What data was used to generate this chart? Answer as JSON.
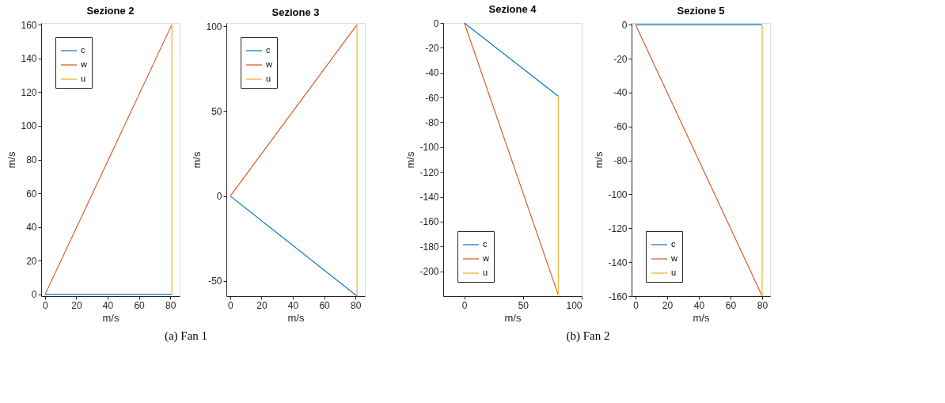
{
  "chart_data": [
    {
      "type": "line",
      "title": "Sezione 2",
      "xlabel": "m/s",
      "ylabel": "m/s",
      "xlim": [
        -2.5,
        86
      ],
      "xticks": [
        0,
        20,
        40,
        60,
        80
      ],
      "ylim": [
        -1,
        161
      ],
      "yticks": [
        0,
        20,
        40,
        60,
        80,
        100,
        120,
        140,
        160
      ],
      "legend": "top left",
      "grid": false,
      "marker": "none",
      "annotations": [
        "(a) Fan 1"
      ],
      "series": [
        {
          "name": "c",
          "color": "#0072bd",
          "x": [
            0,
            81
          ],
          "values": [
            0,
            0
          ]
        },
        {
          "name": "w",
          "color": "#d95319",
          "x": [
            0,
            81
          ],
          "values": [
            0,
            160
          ]
        },
        {
          "name": "u",
          "color": "#edb120",
          "x": [
            81,
            81
          ],
          "values": [
            160,
            0
          ]
        }
      ]
    },
    {
      "type": "line",
      "title": "Sezione 3",
      "xlabel": "m/s",
      "ylabel": "m/s",
      "xlim": [
        -2.5,
        86
      ],
      "xticks": [
        0,
        20,
        40,
        60,
        80
      ],
      "ylim": [
        -59,
        102
      ],
      "yticks": [
        -50,
        0,
        50,
        100
      ],
      "legend": "top left",
      "grid": false,
      "marker": "none",
      "series": [
        {
          "name": "c",
          "color": "#0072bd",
          "x": [
            0,
            81
          ],
          "values": [
            0,
            -59
          ]
        },
        {
          "name": "w",
          "color": "#d95319",
          "x": [
            0,
            81
          ],
          "values": [
            0,
            101
          ]
        },
        {
          "name": "u",
          "color": "#edb120",
          "x": [
            81,
            81
          ],
          "values": [
            101,
            -59
          ]
        }
      ]
    },
    {
      "type": "line",
      "title": "Sezione 4",
      "xlabel": "m/s",
      "ylabel": "m/s",
      "xlim": [
        -18,
        100
      ],
      "xticks": [
        0,
        50,
        100
      ],
      "ylim": [
        -220,
        0
      ],
      "yticks": [
        -200,
        -180,
        -160,
        -140,
        -120,
        -100,
        -80,
        -60,
        -40,
        -20,
        0
      ],
      "legend": "bottom left",
      "grid": false,
      "marker": "none",
      "annotations": [
        "(b) Fan 2"
      ],
      "series": [
        {
          "name": "c",
          "color": "#0072bd",
          "x": [
            0,
            80
          ],
          "values": [
            0,
            -59
          ]
        },
        {
          "name": "w",
          "color": "#d95319",
          "x": [
            0,
            80
          ],
          "values": [
            0,
            -219
          ]
        },
        {
          "name": "u",
          "color": "#edb120",
          "x": [
            80,
            80
          ],
          "values": [
            -219,
            -59
          ]
        }
      ]
    },
    {
      "type": "line",
      "title": "Sezione 5",
      "xlabel": "m/s",
      "ylabel": "m/s",
      "xlim": [
        -2.5,
        85
      ],
      "xticks": [
        0,
        20,
        40,
        60,
        80
      ],
      "ylim": [
        -160,
        1
      ],
      "yticks": [
        -160,
        -140,
        -120,
        -100,
        -80,
        -60,
        -40,
        -20,
        0
      ],
      "legend": "bottom left",
      "grid": false,
      "marker": "none",
      "series": [
        {
          "name": "c",
          "color": "#0072bd",
          "x": [
            0,
            80
          ],
          "values": [
            0,
            0
          ]
        },
        {
          "name": "w",
          "color": "#d95319",
          "x": [
            0,
            80
          ],
          "values": [
            0,
            -160
          ]
        },
        {
          "name": "u",
          "color": "#edb120",
          "x": [
            80,
            80
          ],
          "values": [
            -160,
            0
          ]
        }
      ]
    }
  ]
}
